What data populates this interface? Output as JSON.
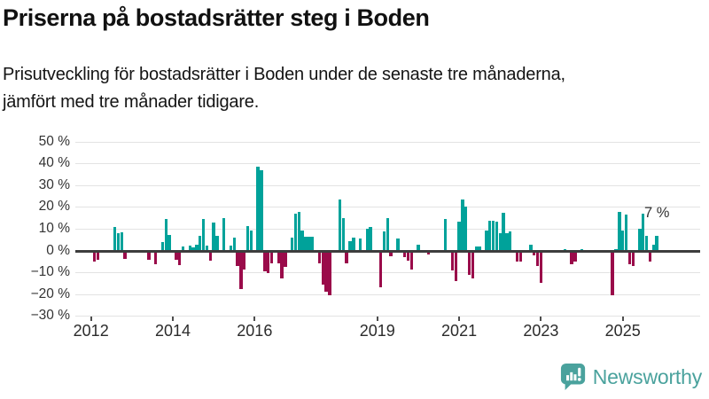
{
  "header": {
    "title": "Priserna på bostadsrätter steg i Boden",
    "subtitle1": "Prisutveckling för bostadsrätter i Boden under de senaste tre månaderna,",
    "subtitle2": "jämfört med tre månader tidigare."
  },
  "annotation": {
    "text": "7 %"
  },
  "logo": {
    "text": "Newsworthy",
    "color": "#4aa29d"
  },
  "chart_data": {
    "type": "bar",
    "title": "Prisutveckling för bostadsrätter i Boden, rullande 3 månader jämfört med föregående 3 månader",
    "xlabel": "",
    "ylabel": "",
    "unit": "%",
    "ylim": [
      -30,
      50
    ],
    "grid": "horizontal",
    "legend": "none",
    "colors": {
      "positive": "#00a29a",
      "negative": "#9a0b4a"
    },
    "yticks": [
      {
        "value": 50,
        "label": "50 %"
      },
      {
        "value": 40,
        "label": "40 %"
      },
      {
        "value": 30,
        "label": "30 %"
      },
      {
        "value": 20,
        "label": "20 %"
      },
      {
        "value": 10,
        "label": "10 %"
      },
      {
        "value": 0,
        "label": "0 %"
      },
      {
        "value": -10,
        "label": "−10 %"
      },
      {
        "value": -20,
        "label": "−20 %"
      },
      {
        "value": -30,
        "label": "−30 %"
      }
    ],
    "xticks": [
      {
        "year": 2012,
        "label": "2012"
      },
      {
        "year": 2014,
        "label": "2014"
      },
      {
        "year": 2016,
        "label": "2016"
      },
      {
        "year": 2019,
        "label": "2019"
      },
      {
        "year": 2021,
        "label": "2021"
      },
      {
        "year": 2023,
        "label": "2023"
      },
      {
        "year": 2025,
        "label": "2025"
      }
    ],
    "series_format": {
      "d": "month (YYYY-MM)",
      "v": "price change in percent"
    },
    "series": [
      {
        "d": "2012-02",
        "v": -5
      },
      {
        "d": "2012-03",
        "v": -4
      },
      {
        "d": "2012-08",
        "v": 11
      },
      {
        "d": "2012-09",
        "v": 8
      },
      {
        "d": "2012-10",
        "v": 8.5
      },
      {
        "d": "2012-11",
        "v": -3.5
      },
      {
        "d": "2013-06",
        "v": -4
      },
      {
        "d": "2013-08",
        "v": -6
      },
      {
        "d": "2013-10",
        "v": 4
      },
      {
        "d": "2013-11",
        "v": 14.5
      },
      {
        "d": "2013-12",
        "v": 7.5
      },
      {
        "d": "2014-02",
        "v": -4
      },
      {
        "d": "2014-03",
        "v": -6.5
      },
      {
        "d": "2014-04",
        "v": 2
      },
      {
        "d": "2014-06",
        "v": 2.5
      },
      {
        "d": "2014-07",
        "v": 1.5
      },
      {
        "d": "2014-08",
        "v": 3
      },
      {
        "d": "2014-09",
        "v": 7
      },
      {
        "d": "2014-10",
        "v": 14.5
      },
      {
        "d": "2014-11",
        "v": 2.5
      },
      {
        "d": "2014-12",
        "v": -4.5
      },
      {
        "d": "2015-01",
        "v": 13
      },
      {
        "d": "2015-02",
        "v": 7
      },
      {
        "d": "2015-04",
        "v": 15
      },
      {
        "d": "2015-06",
        "v": 2.5
      },
      {
        "d": "2015-07",
        "v": 6
      },
      {
        "d": "2015-08",
        "v": -7
      },
      {
        "d": "2015-09",
        "v": -17.5
      },
      {
        "d": "2015-10",
        "v": -8.5
      },
      {
        "d": "2015-11",
        "v": 11.5
      },
      {
        "d": "2015-12",
        "v": 9.5
      },
      {
        "d": "2016-02",
        "v": 38.5
      },
      {
        "d": "2016-03",
        "v": 37
      },
      {
        "d": "2016-04",
        "v": -9.5
      },
      {
        "d": "2016-05",
        "v": -10
      },
      {
        "d": "2016-06",
        "v": -5.5
      },
      {
        "d": "2016-08",
        "v": -5.5
      },
      {
        "d": "2016-09",
        "v": -12.5
      },
      {
        "d": "2016-10",
        "v": -7.5
      },
      {
        "d": "2016-12",
        "v": 6
      },
      {
        "d": "2017-01",
        "v": 17
      },
      {
        "d": "2017-02",
        "v": 18
      },
      {
        "d": "2017-03",
        "v": 9.5
      },
      {
        "d": "2017-04",
        "v": 6.5
      },
      {
        "d": "2017-05",
        "v": 6.5
      },
      {
        "d": "2017-06",
        "v": 6.5
      },
      {
        "d": "2017-08",
        "v": -5.5
      },
      {
        "d": "2017-09",
        "v": -15.5
      },
      {
        "d": "2017-10",
        "v": -18.5
      },
      {
        "d": "2017-11",
        "v": -20.5
      },
      {
        "d": "2018-02",
        "v": 23.5
      },
      {
        "d": "2018-03",
        "v": 15
      },
      {
        "d": "2018-04",
        "v": -5.5
      },
      {
        "d": "2018-05",
        "v": 4.5
      },
      {
        "d": "2018-06",
        "v": 6
      },
      {
        "d": "2018-08",
        "v": 5.5
      },
      {
        "d": "2018-10",
        "v": 10
      },
      {
        "d": "2018-11",
        "v": 11
      },
      {
        "d": "2019-02",
        "v": -16.5
      },
      {
        "d": "2019-03",
        "v": 9
      },
      {
        "d": "2019-04",
        "v": 15
      },
      {
        "d": "2019-05",
        "v": -2.5
      },
      {
        "d": "2019-07",
        "v": 5.5
      },
      {
        "d": "2019-09",
        "v": -3
      },
      {
        "d": "2019-10",
        "v": -4.5
      },
      {
        "d": "2019-11",
        "v": -8.5
      },
      {
        "d": "2020-01",
        "v": 3
      },
      {
        "d": "2020-04",
        "v": -1.5
      },
      {
        "d": "2020-09",
        "v": 14.5
      },
      {
        "d": "2020-11",
        "v": -9
      },
      {
        "d": "2020-12",
        "v": -14
      },
      {
        "d": "2021-01",
        "v": 13.5
      },
      {
        "d": "2021-02",
        "v": 23.5
      },
      {
        "d": "2021-03",
        "v": 20.5
      },
      {
        "d": "2021-04",
        "v": -11
      },
      {
        "d": "2021-05",
        "v": -12.5
      },
      {
        "d": "2021-06",
        "v": 2
      },
      {
        "d": "2021-07",
        "v": 2
      },
      {
        "d": "2021-09",
        "v": 9.5
      },
      {
        "d": "2021-10",
        "v": 14
      },
      {
        "d": "2021-11",
        "v": 14
      },
      {
        "d": "2021-12",
        "v": 13.5
      },
      {
        "d": "2022-01",
        "v": 8
      },
      {
        "d": "2022-02",
        "v": 17.5
      },
      {
        "d": "2022-03",
        "v": 8
      },
      {
        "d": "2022-04",
        "v": 9
      },
      {
        "d": "2022-06",
        "v": -5
      },
      {
        "d": "2022-07",
        "v": -5
      },
      {
        "d": "2022-10",
        "v": 3
      },
      {
        "d": "2022-11",
        "v": -2
      },
      {
        "d": "2022-12",
        "v": -7
      },
      {
        "d": "2023-01",
        "v": -14.5
      },
      {
        "d": "2023-08",
        "v": 1
      },
      {
        "d": "2023-10",
        "v": -6
      },
      {
        "d": "2023-11",
        "v": -5
      },
      {
        "d": "2024-01",
        "v": 1
      },
      {
        "d": "2024-10",
        "v": -20.5
      },
      {
        "d": "2024-11",
        "v": 1
      },
      {
        "d": "2024-12",
        "v": 18
      },
      {
        "d": "2025-01",
        "v": 9.5
      },
      {
        "d": "2025-02",
        "v": 16.5
      },
      {
        "d": "2025-03",
        "v": -6
      },
      {
        "d": "2025-04",
        "v": -7
      },
      {
        "d": "2025-06",
        "v": 10
      },
      {
        "d": "2025-07",
        "v": 17
      },
      {
        "d": "2025-08",
        "v": 7
      },
      {
        "d": "2025-09",
        "v": -5
      },
      {
        "d": "2025-10",
        "v": 3
      },
      {
        "d": "2025-11",
        "v": 7
      }
    ],
    "last_value_label": "7 %"
  }
}
